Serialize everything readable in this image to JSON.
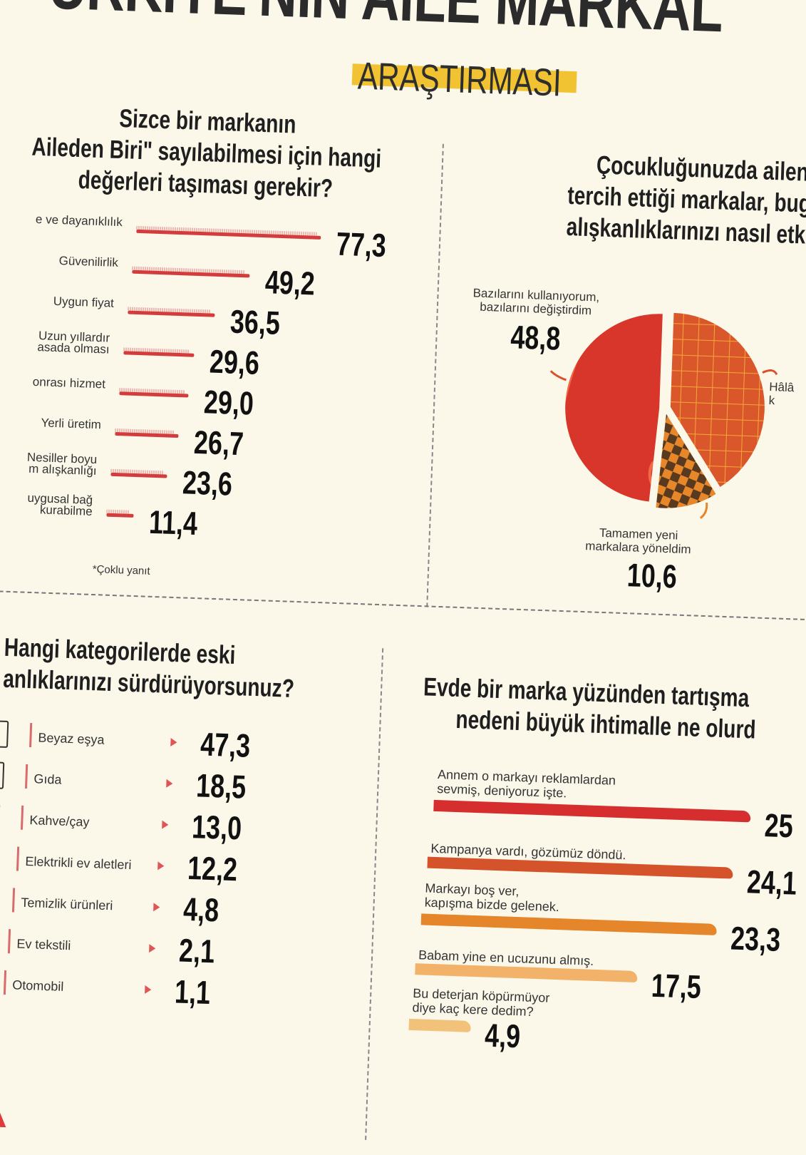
{
  "header": {
    "title": "TÜRKİYE'NİN AİLE MARKALARI",
    "title_visible": "URKIYE'NIN AILE MARKAL",
    "subtitle": "ARAŞTIRMASI",
    "highlight_color": "#f1c232"
  },
  "chart_data": [
    {
      "type": "bar",
      "orientation": "horizontal",
      "title": "Sizce bir markanın \"Aileden Biri\" sayılabilmesi için hangi değerleri taşıması gerekir?",
      "title_lines": [
        "Sizce bir markanın",
        "Aileden Biri\" sayılabilmesi için hangi",
        "değerleri taşıması gerekir?"
      ],
      "categories": [
        "e ve dayanıklılık",
        "Güvenilirlik",
        "Uygun fiyat",
        "Uzun yıllardır\nasada olması",
        "onrası hizmet",
        "Yerli üretim",
        "Nesiller boyu\nm alışkanlığı",
        "uygusal bağ\nkurabilme"
      ],
      "values": [
        77.3,
        49.2,
        36.5,
        29.6,
        29.0,
        26.7,
        23.6,
        11.4
      ],
      "value_labels": [
        "77,3",
        "49,2",
        "36,5",
        "29,6",
        "29,0",
        "26,7",
        "23,6",
        "11,4"
      ],
      "note": "*Çoklu yanıt",
      "color": "#d33c3c"
    },
    {
      "type": "pie",
      "title_lines": [
        "Çocukluğunuzda aileniz",
        "tercih ettiği markalar, bugü",
        "alışkanlıklarınızı nasıl etkili"
      ],
      "slices": [
        {
          "label": "Hâlâ\nk",
          "value": 40.6,
          "value_label": "",
          "color": "#d9572a",
          "pattern": "grid"
        },
        {
          "label": "Tamamen yeni\nmarkalara yöneldim",
          "value": 10.6,
          "value_label": "10,6",
          "color": "#5a3a1e",
          "pattern": "checker"
        },
        {
          "label": "Bazılarını kullanıyorum,\nbazılarını değiştirdim",
          "value": 48.8,
          "value_label": "48,8",
          "color": "#d9362b",
          "pattern": "rings"
        }
      ]
    },
    {
      "type": "table",
      "title_lines": [
        "Hangi kategorilerde eski",
        "anlıklarınızı sürdürüyorsunuz?"
      ],
      "rows": [
        {
          "icon": "refrigerator-icon",
          "label": "Beyaz eşya",
          "value": "47,3"
        },
        {
          "icon": "food-basket-icon",
          "label": "Gıda",
          "value": "18,5"
        },
        {
          "icon": "coffee-machine-icon",
          "label": "Kahve/çay",
          "value": "13,0"
        },
        {
          "icon": "appliance-icon",
          "label": "Elektrikli ev aletleri",
          "value": "12,2"
        },
        {
          "icon": "cleaning-products-icon",
          "label": "Temizlik ürünleri",
          "value": "4,8"
        },
        {
          "icon": "textile-icon",
          "label": "Ev tekstili",
          "value": "2,1"
        },
        {
          "icon": "car-icon",
          "label": "Otomobil",
          "value": "1,1"
        }
      ]
    },
    {
      "type": "bar",
      "orientation": "horizontal",
      "title_lines": [
        "Evde bir marka yüzünden tartışma",
        "nedeni büyük ihtimalle ne olurd"
      ],
      "categories": [
        "Annem o markayı reklamlardan\nsevmiş, deniyoruz işte.",
        "Kampanya vardı, gözümüz döndü.",
        "Markayı boş ver,\nkapışma bizde gelenek.",
        "Babam yine en ucuzunu almış.",
        "Bu deterjan köpürmüyor\ndiye kaç kere dedim?"
      ],
      "values": [
        25,
        24.1,
        23.3,
        17.5,
        4.9
      ],
      "value_labels": [
        "25",
        "24,1",
        "23,3",
        "17,5",
        "4,9"
      ],
      "colors": [
        "#d62e2e",
        "#d5532b",
        "#e5862a",
        "#f2b26a",
        "#f2c27a"
      ]
    }
  ]
}
